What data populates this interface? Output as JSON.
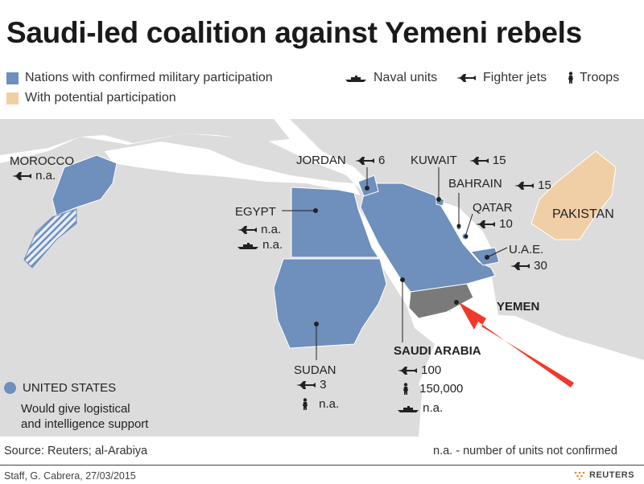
{
  "title": "Saudi-led coalition against Yemeni rebels",
  "legend": {
    "confirmed": {
      "label": "Nations with confirmed military participation",
      "color": "#6f8fbd"
    },
    "potential": {
      "label": "With potential participation",
      "color": "#f1cfa6"
    },
    "naval": {
      "label": "Naval units",
      "icon": "ship-icon"
    },
    "jets": {
      "label": "Fighter jets",
      "icon": "jet-icon"
    },
    "troops": {
      "label": "Troops",
      "icon": "soldier-icon"
    }
  },
  "countries": {
    "morocco": {
      "name": "MOROCCO",
      "jets": "n.a."
    },
    "jordan": {
      "name": "JORDAN",
      "jets": "6"
    },
    "kuwait": {
      "name": "KUWAIT",
      "jets": "15"
    },
    "bahrain": {
      "name": "BAHRAIN",
      "jets": "15"
    },
    "qatar": {
      "name": "QATAR",
      "jets": "10"
    },
    "uae": {
      "name": "U.A.E.",
      "jets": "30"
    },
    "egypt": {
      "name": "EGYPT",
      "jets": "n.a.",
      "naval": "n.a."
    },
    "pakistan": {
      "name": "PAKISTAN"
    },
    "yemen": {
      "name": "YEMEN"
    },
    "saudi": {
      "name": "SAUDI ARABIA",
      "jets": "100",
      "troops": "150,000",
      "naval": "n.a."
    },
    "sudan": {
      "name": "SUDAN",
      "jets": "3",
      "troops": "n.a."
    }
  },
  "us": {
    "name": "UNITED STATES",
    "note_line1": "Would give logistical",
    "note_line2": "and intelligence support"
  },
  "source": "Source: Reuters; al-Arabiya",
  "na_note": "n.a. - number of units not confirmed",
  "credit": "Staff, G. Cabrera, 27/03/2015",
  "brand": "REUTERS",
  "colors": {
    "sea": "#ffffff",
    "land": "#dcdcdc",
    "yemen": "#7a7a7a",
    "arrow": "#f2382b"
  }
}
